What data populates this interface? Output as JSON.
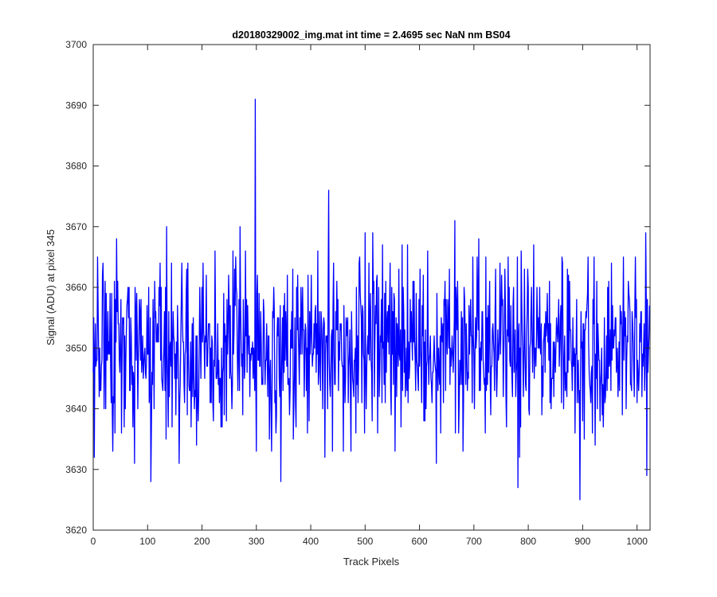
{
  "chart_data": {
    "type": "line",
    "title": "d20180329002_img.mat int time = 2.4695 sec  NaN nm BS04",
    "xlabel": "Track Pixels",
    "ylabel": "Signal (ADU) at pixel 345",
    "xlim": [
      0,
      1024
    ],
    "ylim": [
      3620,
      3700
    ],
    "x_ticks": [
      0,
      100,
      200,
      300,
      400,
      500,
      600,
      700,
      800,
      900,
      1000
    ],
    "y_ticks": [
      3620,
      3630,
      3640,
      3650,
      3660,
      3670,
      3680,
      3690,
      3700
    ],
    "grid": false,
    "line_color": "#0000ff",
    "n_points": 1024,
    "baseline_mean": 3650,
    "noise_range": [
      3625,
      3691
    ],
    "notable_points": [
      {
        "x": 2,
        "y": 3632
      },
      {
        "x": 8,
        "y": 3665
      },
      {
        "x": 36,
        "y": 3633
      },
      {
        "x": 106,
        "y": 3628
      },
      {
        "x": 135,
        "y": 3670
      },
      {
        "x": 158,
        "y": 3631
      },
      {
        "x": 224,
        "y": 3666
      },
      {
        "x": 270,
        "y": 3670
      },
      {
        "x": 298,
        "y": 3691
      },
      {
        "x": 300,
        "y": 3633
      },
      {
        "x": 345,
        "y": 3628
      },
      {
        "x": 433,
        "y": 3676
      },
      {
        "x": 440,
        "y": 3633
      },
      {
        "x": 474,
        "y": 3633
      },
      {
        "x": 500,
        "y": 3669
      },
      {
        "x": 555,
        "y": 3633
      },
      {
        "x": 631,
        "y": 3631
      },
      {
        "x": 665,
        "y": 3671
      },
      {
        "x": 680,
        "y": 3633
      },
      {
        "x": 781,
        "y": 3627
      },
      {
        "x": 810,
        "y": 3667
      },
      {
        "x": 895,
        "y": 3625
      },
      {
        "x": 1018,
        "y": 3629
      }
    ]
  }
}
